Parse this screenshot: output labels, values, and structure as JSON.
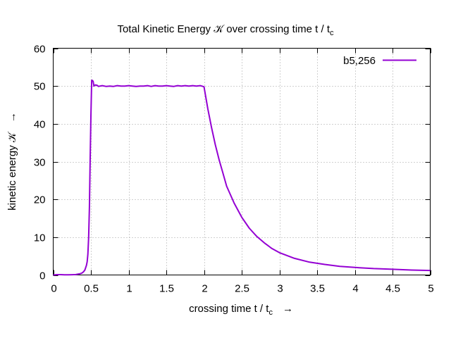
{
  "chart_data": {
    "type": "line",
    "title": "Total Kinetic Energy 𝒦 over crossing time t / t",
    "title_sub": "c",
    "xlabel": "crossing time t / t",
    "xlabel_sub": "c",
    "xlabel_arrow": "→",
    "ylabel": "kinetic energy 𝒦",
    "ylabel_arrow": "→",
    "xlim": [
      0,
      5
    ],
    "ylim": [
      0,
      60
    ],
    "xticks": [
      0,
      0.5,
      1,
      1.5,
      2,
      2.5,
      3,
      3.5,
      4,
      4.5,
      5
    ],
    "xtick_labels": [
      "0",
      "0.5",
      "1",
      "1.5",
      "2",
      "2.5",
      "3",
      "3.5",
      "4",
      "4.5",
      "5"
    ],
    "yticks": [
      0,
      10,
      20,
      30,
      40,
      50,
      60
    ],
    "ytick_labels": [
      "0",
      "10",
      "20",
      "30",
      "40",
      "50",
      "60"
    ],
    "grid": true,
    "legend_position": "top-right",
    "series": [
      {
        "name": "b5,256",
        "color": "#9400d3",
        "x": [
          0,
          0.05,
          0.1,
          0.15,
          0.2,
          0.25,
          0.3,
          0.35,
          0.38,
          0.4,
          0.42,
          0.44,
          0.45,
          0.46,
          0.47,
          0.48,
          0.49,
          0.5,
          0.51,
          0.52,
          0.53,
          0.54,
          0.56,
          0.58,
          0.6,
          0.65,
          0.7,
          0.75,
          0.8,
          0.85,
          0.9,
          0.95,
          1.0,
          1.05,
          1.1,
          1.15,
          1.2,
          1.25,
          1.3,
          1.35,
          1.4,
          1.45,
          1.5,
          1.55,
          1.6,
          1.65,
          1.7,
          1.75,
          1.8,
          1.85,
          1.9,
          1.95,
          2.0,
          2.05,
          2.1,
          2.15,
          2.2,
          2.25,
          2.3,
          2.4,
          2.5,
          2.6,
          2.7,
          2.8,
          2.9,
          3.0,
          3.2,
          3.4,
          3.6,
          3.8,
          4.0,
          4.25,
          4.5,
          4.75,
          5.0
        ],
        "y": [
          0.0,
          0.1,
          0.1,
          0.05,
          0.05,
          0.08,
          0.12,
          0.3,
          0.5,
          0.8,
          1.3,
          2.5,
          3.5,
          5.5,
          10.0,
          18.0,
          30.0,
          42.0,
          51.5,
          51.5,
          51.2,
          50.0,
          50.3,
          50.2,
          49.9,
          50.1,
          49.9,
          50.0,
          49.9,
          50.1,
          50.0,
          50.0,
          50.1,
          50.0,
          49.9,
          50.0,
          50.0,
          50.1,
          49.9,
          50.1,
          50.0,
          50.0,
          50.1,
          50.0,
          49.9,
          50.1,
          50.0,
          50.1,
          50.0,
          50.1,
          50.0,
          50.1,
          49.8,
          44.0,
          39.0,
          34.5,
          30.5,
          27.0,
          23.5,
          19.0,
          15.3,
          12.4,
          10.2,
          8.5,
          7.0,
          5.9,
          4.4,
          3.4,
          2.8,
          2.3,
          2.0,
          1.7,
          1.5,
          1.3,
          1.2
        ]
      }
    ]
  }
}
